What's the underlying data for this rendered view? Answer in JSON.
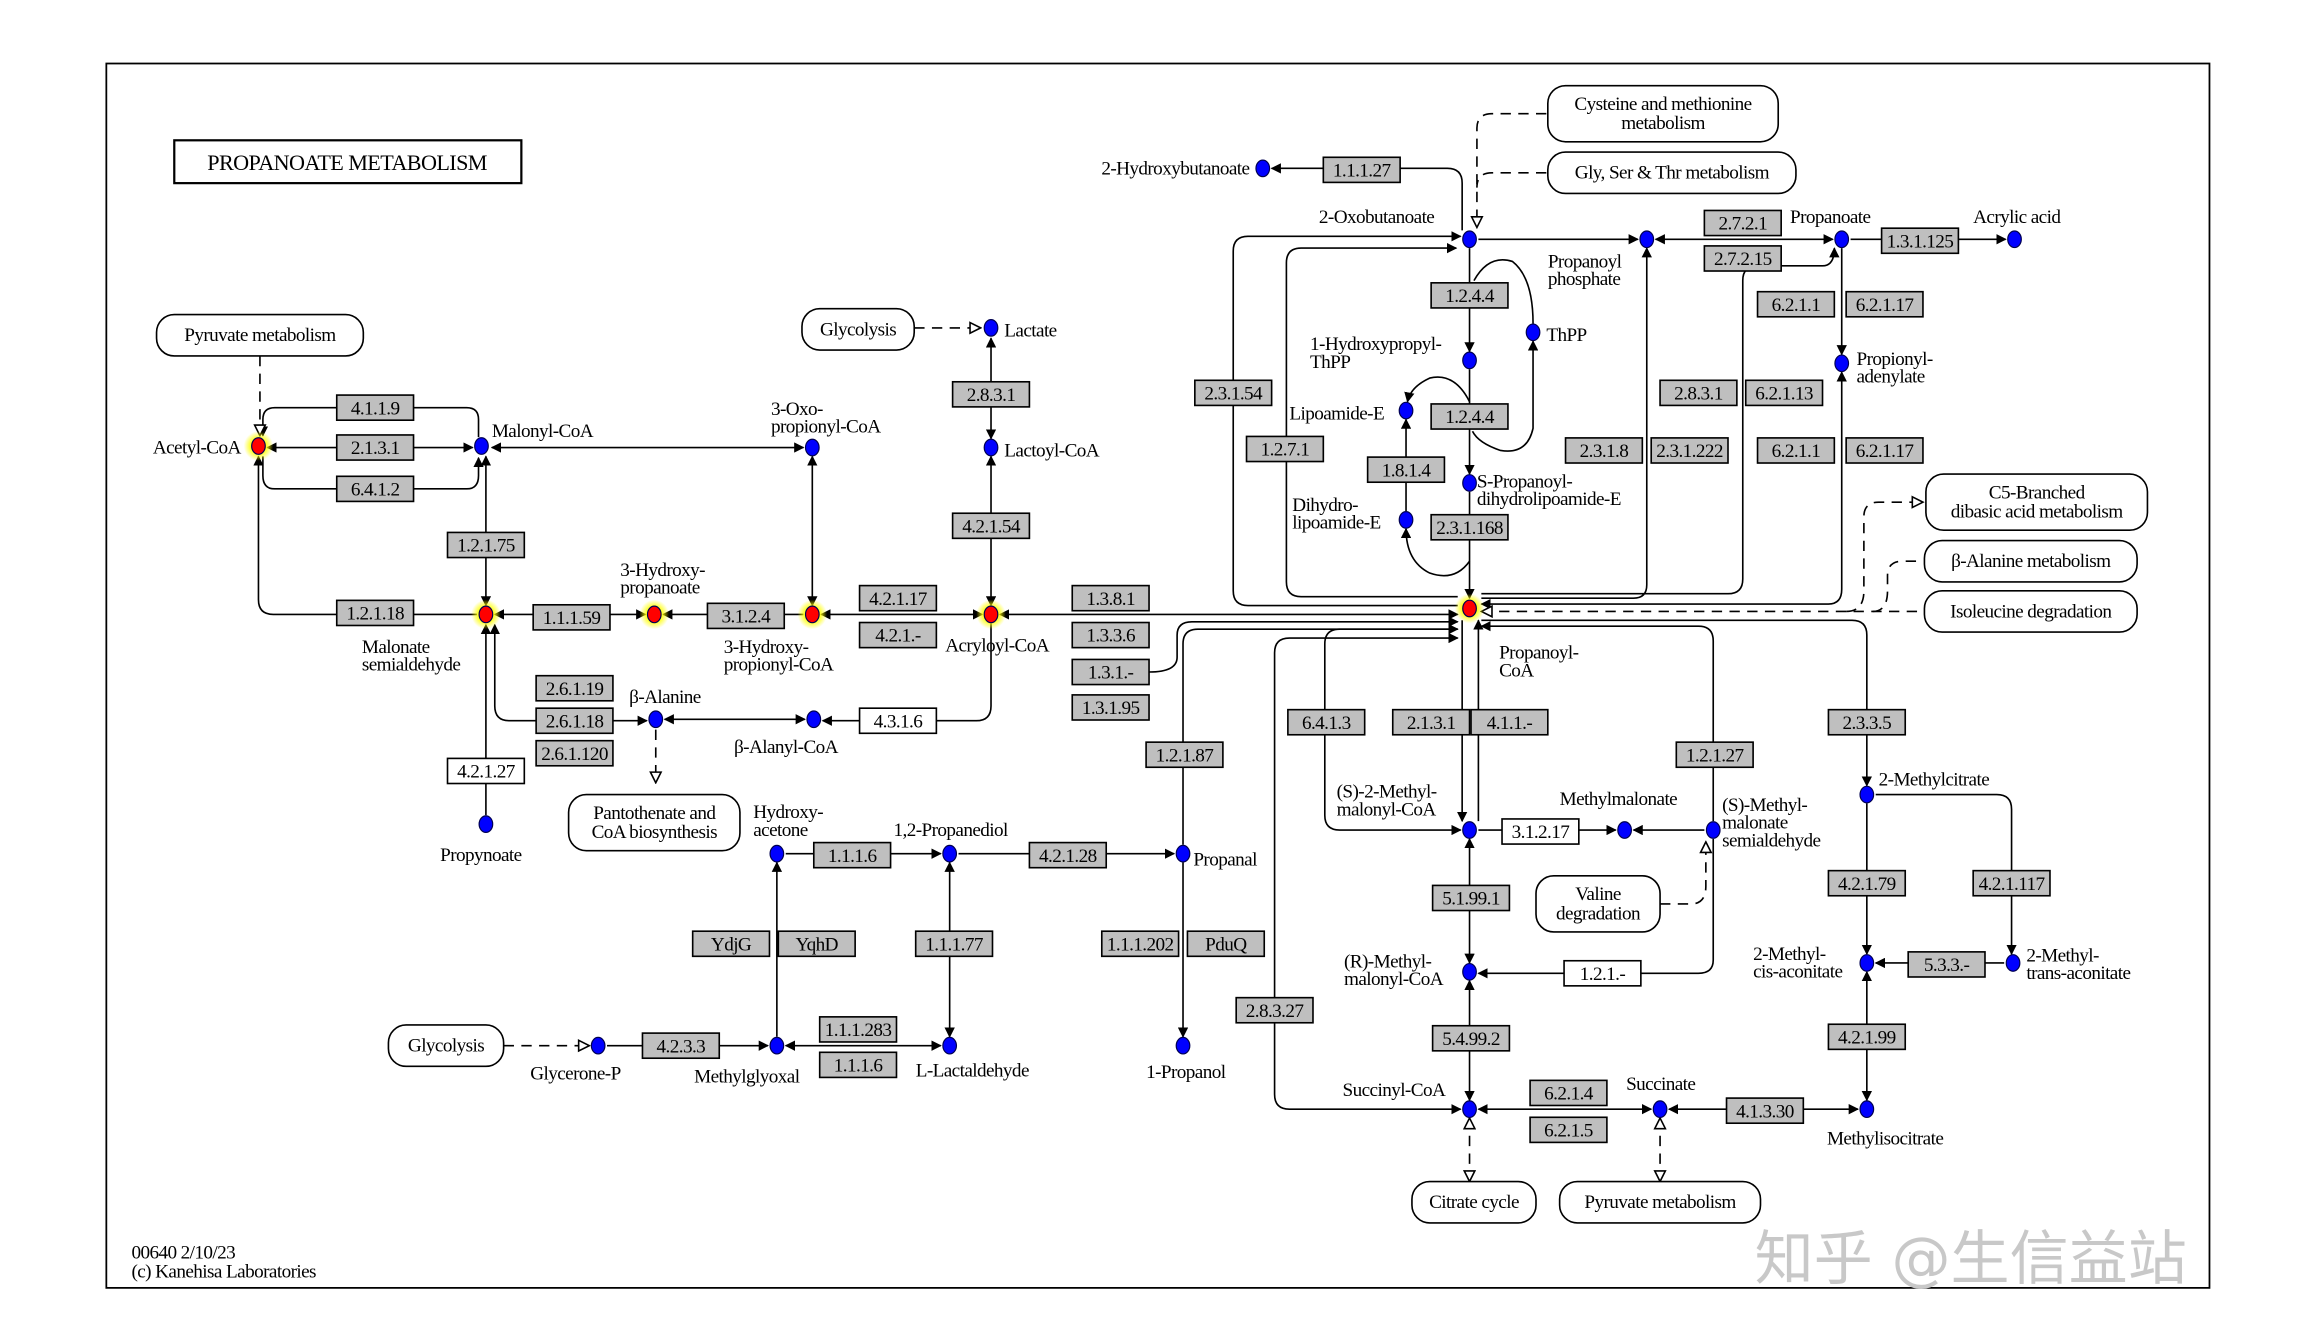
{
  "title": "PROPANOATE METABOLISM",
  "footer": {
    "map_id_date": "00640 2/10/23",
    "copyright": "(c) Kanehisa Laboratories"
  },
  "watermark": "知乎 @生信益站",
  "colors": {
    "compound": "#0000ff",
    "highlighted_compound": "#ff0000",
    "highlight_glow": "#ffff00",
    "enzyme_fill": "#bfbfbf",
    "enzyme_white": "#ffffff"
  },
  "compounds": [
    {
      "lines": [
        "Acetyl-CoA"
      ],
      "highlighted": true
    },
    {
      "lines": [
        "Malonyl-CoA"
      ],
      "highlighted": false
    },
    {
      "lines": [
        "3-Oxo-",
        "propionyl-CoA"
      ],
      "highlighted": false
    },
    {
      "lines": [
        "Malonate",
        "semialdehyde"
      ],
      "highlighted": true
    },
    {
      "lines": [
        "3-Hydroxy-",
        "propanoate"
      ],
      "highlighted": true
    },
    {
      "lines": [
        "3-Hydroxy-",
        "propionyl-CoA"
      ],
      "highlighted": true
    },
    {
      "lines": [
        "Acryloyl-CoA"
      ],
      "highlighted": true
    },
    {
      "lines": [
        "Lactoyl-CoA"
      ],
      "highlighted": false
    },
    {
      "lines": [
        "Lactate"
      ],
      "highlighted": false
    },
    {
      "lines": [
        "β-Alanine"
      ],
      "highlighted": false
    },
    {
      "lines": [
        "β-Alanyl-CoA"
      ],
      "highlighted": false
    },
    {
      "lines": [
        "Propynoate"
      ],
      "highlighted": false
    },
    {
      "lines": [
        "Hydroxy-",
        "acetone"
      ],
      "highlighted": false
    },
    {
      "lines": [
        "1,2-Propanediol"
      ],
      "highlighted": false
    },
    {
      "lines": [
        "Propanal"
      ],
      "highlighted": false
    },
    {
      "lines": [
        "Glycerone-P"
      ],
      "highlighted": false
    },
    {
      "lines": [
        "Methylglyoxal"
      ],
      "highlighted": false
    },
    {
      "lines": [
        "L-Lactaldehyde"
      ],
      "highlighted": false
    },
    {
      "lines": [
        "1-Propanol"
      ],
      "highlighted": false
    },
    {
      "lines": [
        "2-Hydroxybutanoate"
      ],
      "highlighted": false
    },
    {
      "lines": [
        "2-Oxobutanoate"
      ],
      "highlighted": false
    },
    {
      "lines": [
        "Propanoyl",
        "phosphate"
      ],
      "highlighted": false
    },
    {
      "lines": [
        "Propanoate"
      ],
      "highlighted": false
    },
    {
      "lines": [
        "Acrylic acid"
      ],
      "highlighted": false
    },
    {
      "lines": [
        "1-Hydroxypropyl-",
        "ThPP"
      ],
      "highlighted": false
    },
    {
      "lines": [
        "ThPP"
      ],
      "highlighted": false
    },
    {
      "lines": [
        "Lipoamide-E"
      ],
      "highlighted": false
    },
    {
      "lines": [
        "S-Propanoyl-",
        "dihydrolipoamide-E"
      ],
      "highlighted": false
    },
    {
      "lines": [
        "Dihydro-",
        "lipoamide-E"
      ],
      "highlighted": false
    },
    {
      "lines": [
        "Propionyl-",
        "adenylate"
      ],
      "highlighted": false
    },
    {
      "lines": [
        "Propanoyl-",
        "CoA"
      ],
      "highlighted": true
    },
    {
      "lines": [
        "(S)-2-Methyl-",
        "malonyl-CoA"
      ],
      "highlighted": false
    },
    {
      "lines": [
        "Methylmalonate"
      ],
      "highlighted": false
    },
    {
      "lines": [
        "(S)-Methyl-",
        "malonate",
        "semialdehyde"
      ],
      "highlighted": false
    },
    {
      "lines": [
        "(R)-Methyl-",
        "malonyl-CoA"
      ],
      "highlighted": false
    },
    {
      "lines": [
        "Succinyl-CoA"
      ],
      "highlighted": false
    },
    {
      "lines": [
        "Succinate"
      ],
      "highlighted": false
    },
    {
      "lines": [
        "Methylisocitrate"
      ],
      "highlighted": false
    },
    {
      "lines": [
        "2-Methylcitrate"
      ],
      "highlighted": false
    },
    {
      "lines": [
        "2-Methyl-",
        "cis-aconitate"
      ],
      "highlighted": false
    },
    {
      "lines": [
        "2-Methyl-",
        "trans-aconitate"
      ],
      "highlighted": false
    }
  ],
  "enzymes": [
    {
      "label": "4.1.1.9",
      "style": "gray"
    },
    {
      "label": "2.1.3.1",
      "style": "gray"
    },
    {
      "label": "6.4.1.2",
      "style": "gray"
    },
    {
      "label": "1.2.1.75",
      "style": "gray"
    },
    {
      "label": "1.2.1.18",
      "style": "gray"
    },
    {
      "label": "1.1.1.59",
      "style": "gray"
    },
    {
      "label": "3.1.2.4",
      "style": "gray"
    },
    {
      "label": "4.2.1.17",
      "style": "gray"
    },
    {
      "label": "4.2.1.-",
      "style": "gray"
    },
    {
      "label": "2.8.3.1",
      "style": "gray"
    },
    {
      "label": "4.2.1.54",
      "style": "gray"
    },
    {
      "label": "1.3.8.1",
      "style": "gray"
    },
    {
      "label": "1.3.3.6",
      "style": "gray"
    },
    {
      "label": "1.3.1.-",
      "style": "gray"
    },
    {
      "label": "1.3.1.95",
      "style": "gray"
    },
    {
      "label": "2.6.1.19",
      "style": "gray"
    },
    {
      "label": "2.6.1.18",
      "style": "gray"
    },
    {
      "label": "2.6.1.120",
      "style": "gray"
    },
    {
      "label": "4.3.1.6",
      "style": "white"
    },
    {
      "label": "4.2.1.27",
      "style": "white"
    },
    {
      "label": "1.1.1.6",
      "style": "gray"
    },
    {
      "label": "4.2.1.28",
      "style": "gray"
    },
    {
      "label": "YdjG",
      "style": "gray"
    },
    {
      "label": "YqhD",
      "style": "gray"
    },
    {
      "label": "1.1.1.77",
      "style": "gray"
    },
    {
      "label": "1.1.1.202",
      "style": "gray"
    },
    {
      "label": "PduQ",
      "style": "gray"
    },
    {
      "label": "4.2.3.3",
      "style": "gray"
    },
    {
      "label": "1.1.1.283",
      "style": "gray"
    },
    {
      "label": "1.1.1.6",
      "style": "gray"
    },
    {
      "label": "1.2.1.87",
      "style": "gray"
    },
    {
      "label": "2.8.3.27",
      "style": "gray"
    },
    {
      "label": "1.1.1.27",
      "style": "gray"
    },
    {
      "label": "2.3.1.54",
      "style": "gray"
    },
    {
      "label": "1.2.7.1",
      "style": "gray"
    },
    {
      "label": "1.2.4.4",
      "style": "gray"
    },
    {
      "label": "1.2.4.4",
      "style": "gray"
    },
    {
      "label": "1.8.1.4",
      "style": "gray"
    },
    {
      "label": "2.3.1.168",
      "style": "gray"
    },
    {
      "label": "2.7.2.1",
      "style": "gray"
    },
    {
      "label": "2.7.2.15",
      "style": "gray"
    },
    {
      "label": "1.3.1.125",
      "style": "gray"
    },
    {
      "label": "6.2.1.1",
      "style": "gray"
    },
    {
      "label": "6.2.1.17",
      "style": "gray"
    },
    {
      "label": "2.8.3.1",
      "style": "gray"
    },
    {
      "label": "6.2.1.13",
      "style": "gray"
    },
    {
      "label": "2.3.1.8",
      "style": "gray"
    },
    {
      "label": "2.3.1.222",
      "style": "gray"
    },
    {
      "label": "6.2.1.1",
      "style": "gray"
    },
    {
      "label": "6.2.1.17",
      "style": "gray"
    },
    {
      "label": "6.4.1.3",
      "style": "gray"
    },
    {
      "label": "2.1.3.1",
      "style": "gray"
    },
    {
      "label": "4.1.1.-",
      "style": "gray"
    },
    {
      "label": "1.2.1.27",
      "style": "gray"
    },
    {
      "label": "3.1.2.17",
      "style": "white"
    },
    {
      "label": "5.1.99.1",
      "style": "gray"
    },
    {
      "label": "1.2.1.-",
      "style": "white"
    },
    {
      "label": "5.4.99.2",
      "style": "gray"
    },
    {
      "label": "6.2.1.4",
      "style": "gray"
    },
    {
      "label": "6.2.1.5",
      "style": "gray"
    },
    {
      "label": "4.1.3.30",
      "style": "gray"
    },
    {
      "label": "2.3.3.5",
      "style": "gray"
    },
    {
      "label": "4.2.1.79",
      "style": "gray"
    },
    {
      "label": "4.2.1.117",
      "style": "gray"
    },
    {
      "label": "5.3.3.-",
      "style": "gray"
    },
    {
      "label": "4.2.1.99",
      "style": "gray"
    }
  ],
  "maps": [
    {
      "lines": [
        "Pyruvate metabolism"
      ]
    },
    {
      "lines": [
        "Glycolysis"
      ]
    },
    {
      "lines": [
        "Pantothenate and",
        "CoA biosynthesis"
      ]
    },
    {
      "lines": [
        "Glycolysis"
      ]
    },
    {
      "lines": [
        "Cysteine and methionine",
        "metabolism"
      ]
    },
    {
      "lines": [
        "Gly, Ser & Thr metabolism"
      ]
    },
    {
      "lines": [
        "C5-Branched",
        "dibasic acid metabolism"
      ]
    },
    {
      "lines": [
        "β-Alanine metabolism"
      ]
    },
    {
      "lines": [
        "Isoleucine degradation"
      ]
    },
    {
      "lines": [
        "Valine",
        "degradation"
      ]
    },
    {
      "lines": [
        "Citrate cycle"
      ]
    },
    {
      "lines": [
        "Pyruvate metabolism"
      ]
    }
  ]
}
